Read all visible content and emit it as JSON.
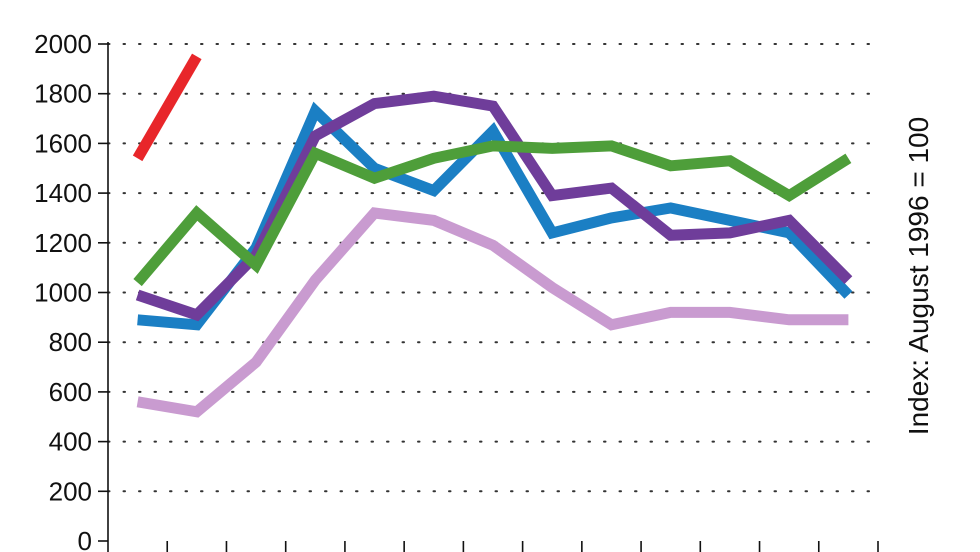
{
  "chart_data": {
    "type": "line",
    "title": "",
    "xlabel": "",
    "ylabel": "Index: August 1996 = 100",
    "ylim": [
      0,
      2000
    ],
    "yticks": [
      0,
      200,
      400,
      600,
      800,
      1000,
      1200,
      1400,
      1600,
      1800,
      2000
    ],
    "x": [
      1,
      2,
      3,
      4,
      5,
      6,
      7,
      8,
      9,
      10,
      11,
      12,
      13
    ],
    "xlim": [
      0.5,
      13.5
    ],
    "grid": "dotted-horizontal",
    "legend": "none",
    "series": [
      {
        "color": "#e8262a",
        "values": [
          1540,
          1950,
          null,
          null,
          null,
          null,
          null,
          null,
          null,
          null,
          null,
          null,
          null
        ]
      },
      {
        "color": "#c99bd0",
        "values": [
          560,
          520,
          720,
          1050,
          1320,
          1290,
          1190,
          1020,
          870,
          920,
          920,
          890,
          890
        ]
      },
      {
        "color": "#1b7fc4",
        "values": [
          890,
          870,
          1180,
          1730,
          1500,
          1410,
          1650,
          1240,
          1300,
          1340,
          1290,
          1240,
          990
        ]
      },
      {
        "color": "#6f3d9a",
        "values": [
          990,
          910,
          1150,
          1630,
          1760,
          1790,
          1750,
          1390,
          1420,
          1230,
          1240,
          1290,
          1050
        ]
      },
      {
        "color": "#4e9e3a",
        "values": [
          1040,
          1320,
          1110,
          1560,
          1460,
          1540,
          1590,
          1580,
          1590,
          1510,
          1530,
          1390,
          1540
        ]
      }
    ]
  }
}
